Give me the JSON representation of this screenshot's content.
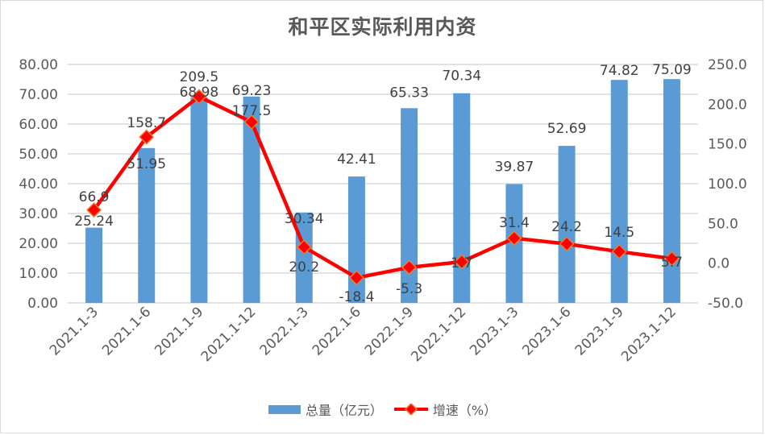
{
  "chart_data": {
    "type": "bar",
    "title": "和平区实际利用内资",
    "categories": [
      "2021.1-3",
      "2021.1-6",
      "2021.1-9",
      "2021.1-12",
      "2022.1-3",
      "2022.1-6",
      "2022.1-9",
      "2022.1-12",
      "2023.1-3",
      "2023.1-6",
      "2023.1-9",
      "2023.1-12"
    ],
    "series": [
      {
        "name": "总量（亿元）",
        "type": "bar",
        "axis": "left",
        "color": "#5b9bd5",
        "values": [
          25.24,
          51.95,
          68.98,
          69.23,
          30.34,
          42.41,
          65.33,
          70.34,
          39.87,
          52.69,
          74.82,
          75.09
        ]
      },
      {
        "name": "增速（%）",
        "type": "line",
        "axis": "right",
        "color": "#ff0000",
        "marker": "diamond",
        "values": [
          66.9,
          158.7,
          209.5,
          177.5,
          20.2,
          -18.4,
          -5.3,
          1.7,
          31.4,
          24.2,
          14.5,
          5.7
        ]
      }
    ],
    "xlabel": "",
    "ylabel_left": "",
    "ylabel_right": "",
    "ylim_left": [
      0,
      80
    ],
    "ylim_right": [
      -50,
      250
    ],
    "yticks_left": [
      "0.00",
      "10.00",
      "20.00",
      "30.00",
      "40.00",
      "50.00",
      "60.00",
      "70.00",
      "80.00"
    ],
    "yticks_right": [
      "-50.0",
      "0.0",
      "50.0",
      "100.0",
      "150.0",
      "200.0",
      "250.0"
    ],
    "grid": true,
    "legend_position": "bottom"
  },
  "legend": {
    "bar_label": "总量（亿元）",
    "line_label": "增速（%）"
  }
}
